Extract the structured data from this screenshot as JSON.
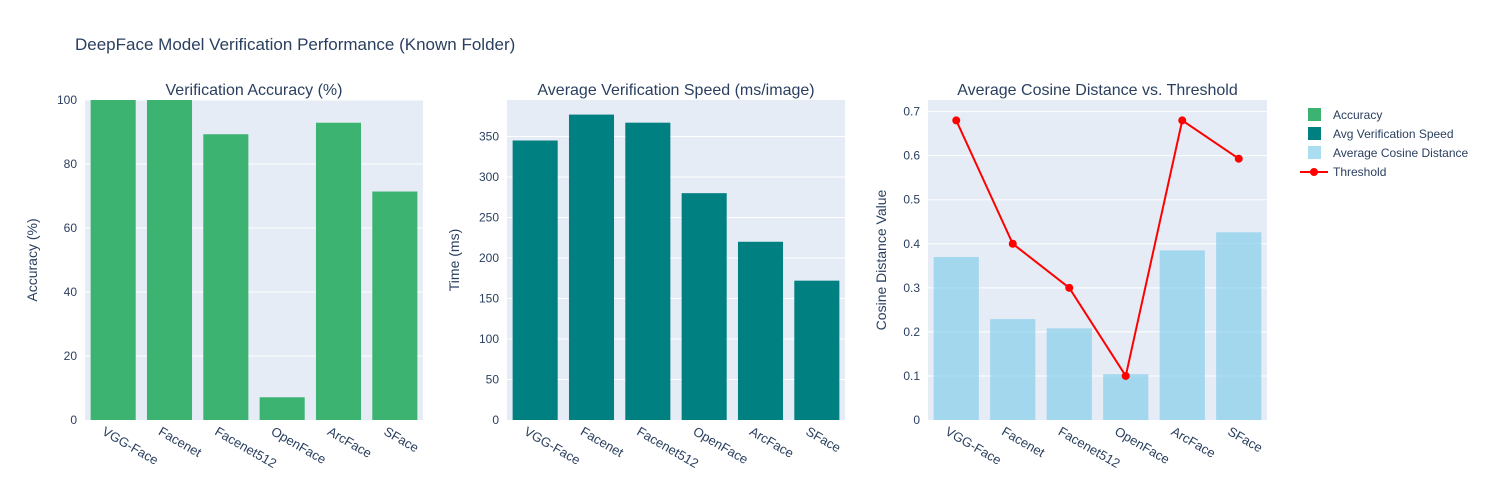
{
  "title": "DeepFace Model Verification Performance (Known Folder)",
  "colors": {
    "plot_bg": "#E5ECF6",
    "grid": "#ffffff",
    "text": "#2a3f5f",
    "accuracy": "#3CB371",
    "speed": "#008080",
    "distance": "#87CEEB",
    "threshold": "#FF0000"
  },
  "legend": {
    "placement": "right",
    "items": [
      {
        "label": "Accuracy",
        "kind": "bar",
        "color_key": "accuracy"
      },
      {
        "label": "Avg Verification Speed",
        "kind": "bar",
        "color_key": "speed"
      },
      {
        "label": "Average Cosine Distance",
        "kind": "bar",
        "color_key": "distance"
      },
      {
        "label": "Threshold",
        "kind": "line",
        "color_key": "threshold"
      }
    ]
  },
  "chart_data": [
    {
      "type": "bar",
      "title": "Verification Accuracy (%)",
      "xlabel": "",
      "ylabel": "Accuracy (%)",
      "categories": [
        "VGG-Face",
        "Facenet",
        "Facenet512",
        "OpenFace",
        "ArcFace",
        "SFace"
      ],
      "ylim": [
        0,
        100
      ],
      "yticks": [
        0,
        20,
        40,
        60,
        80,
        100
      ],
      "series": [
        {
          "name": "Accuracy",
          "type": "bar",
          "color_key": "accuracy",
          "opacity": 1,
          "values": [
            100,
            100,
            89.3,
            7.1,
            92.9,
            71.4
          ]
        }
      ]
    },
    {
      "type": "bar",
      "title": "Average Verification Speed (ms/image)",
      "xlabel": "",
      "ylabel": "Time (ms)",
      "categories": [
        "VGG-Face",
        "Facenet",
        "Facenet512",
        "OpenFace",
        "ArcFace",
        "SFace"
      ],
      "ylim": [
        0,
        395
      ],
      "yticks": [
        0,
        50,
        100,
        150,
        200,
        250,
        300,
        350
      ],
      "series": [
        {
          "name": "Avg Verification Speed",
          "type": "bar",
          "color_key": "speed",
          "opacity": 1,
          "values": [
            345,
            377,
            367,
            280,
            220,
            172
          ]
        }
      ]
    },
    {
      "type": "bar",
      "title": "Average Cosine Distance vs. Threshold",
      "xlabel": "",
      "ylabel": "Cosine Distance Value",
      "categories": [
        "VGG-Face",
        "Facenet",
        "Facenet512",
        "OpenFace",
        "ArcFace",
        "SFace"
      ],
      "ylim": [
        0,
        0.7263
      ],
      "yticks": [
        0,
        0.1,
        0.2,
        0.3,
        0.4,
        0.5,
        0.6,
        0.7
      ],
      "series": [
        {
          "name": "Average Cosine Distance",
          "type": "bar",
          "color_key": "distance",
          "opacity": 0.7,
          "values": [
            0.37,
            0.229,
            0.208,
            0.104,
            0.385,
            0.426
          ]
        },
        {
          "name": "Threshold",
          "type": "line",
          "color_key": "threshold",
          "values": [
            0.68,
            0.4,
            0.3,
            0.1,
            0.68,
            0.593
          ]
        }
      ]
    }
  ]
}
